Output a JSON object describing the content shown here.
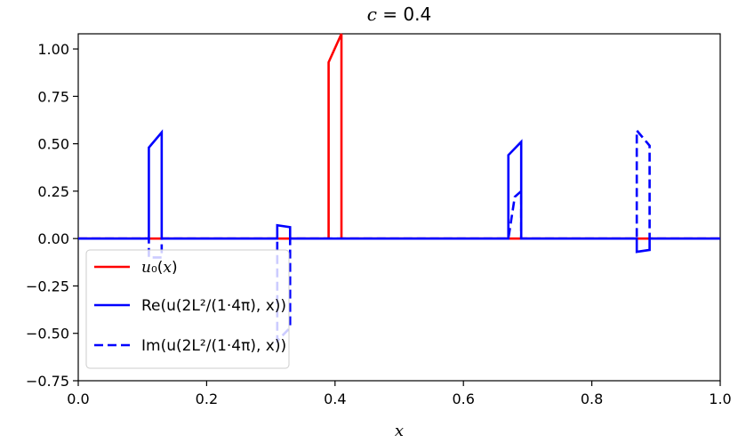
{
  "chart_data": {
    "type": "line",
    "title": "c = 0.4",
    "xlabel": "x",
    "ylabel": "",
    "xlim": [
      0.0,
      1.0
    ],
    "ylim": [
      -0.75,
      1.08
    ],
    "xticks": [
      0.0,
      0.2,
      0.4,
      0.6,
      0.8,
      1.0
    ],
    "xtick_labels": [
      "0.0",
      "0.2",
      "0.4",
      "0.6",
      "0.8",
      "1.0"
    ],
    "yticks": [
      -0.75,
      -0.5,
      -0.25,
      0.0,
      0.25,
      0.5,
      0.75,
      1.0
    ],
    "ytick_labels": [
      "−0.75",
      "−0.50",
      "−0.25",
      "0.00",
      "0.25",
      "0.50",
      "0.75",
      "1.00"
    ],
    "grid": false,
    "legend_position": "lower-left",
    "series": [
      {
        "name": "u0(x)",
        "legend_label": "u₀(x)",
        "color": "#ff0000",
        "style": "solid",
        "x": [
          0.0,
          0.11,
          0.11,
          0.13,
          0.13,
          0.39,
          0.39,
          0.41,
          0.41,
          1.0
        ],
        "y": [
          0.0,
          0.0,
          0.0,
          0.0,
          0.0,
          0.0,
          0.93,
          1.08,
          0.0,
          0.0
        ]
      },
      {
        "name": "Im(u(2/1 L²/4π, x))",
        "legend_label": "Im(u(2L²/(1·4π), x))",
        "color": "#0000ff",
        "style": "dashed",
        "x": [
          0.0,
          0.11,
          0.11,
          0.13,
          0.13,
          0.31,
          0.31,
          0.33,
          0.33,
          0.67,
          0.68,
          0.69,
          0.69,
          0.87,
          0.87,
          0.89,
          0.89,
          1.0
        ],
        "y": [
          0.0,
          0.0,
          -0.1,
          -0.1,
          0.0,
          0.0,
          -0.54,
          -0.47,
          0.0,
          0.0,
          0.22,
          0.25,
          0.0,
          0.0,
          0.57,
          0.49,
          0.0,
          0.0
        ]
      },
      {
        "name": "Re(u(2/1 L²/4π, x))",
        "legend_label": "Re(u(2L²/(1·4π), x))",
        "color": "#0000ff",
        "style": "solid",
        "x": [
          0.0,
          0.11,
          0.11,
          0.13,
          0.13,
          0.31,
          0.31,
          0.33,
          0.33,
          0.67,
          0.67,
          0.69,
          0.69,
          0.87,
          0.87,
          0.89,
          0.89,
          1.0
        ],
        "y": [
          0.0,
          0.0,
          0.48,
          0.56,
          0.0,
          0.0,
          0.07,
          0.06,
          0.0,
          0.0,
          0.44,
          0.51,
          0.0,
          0.0,
          -0.07,
          -0.06,
          0.0,
          0.0
        ]
      }
    ]
  }
}
